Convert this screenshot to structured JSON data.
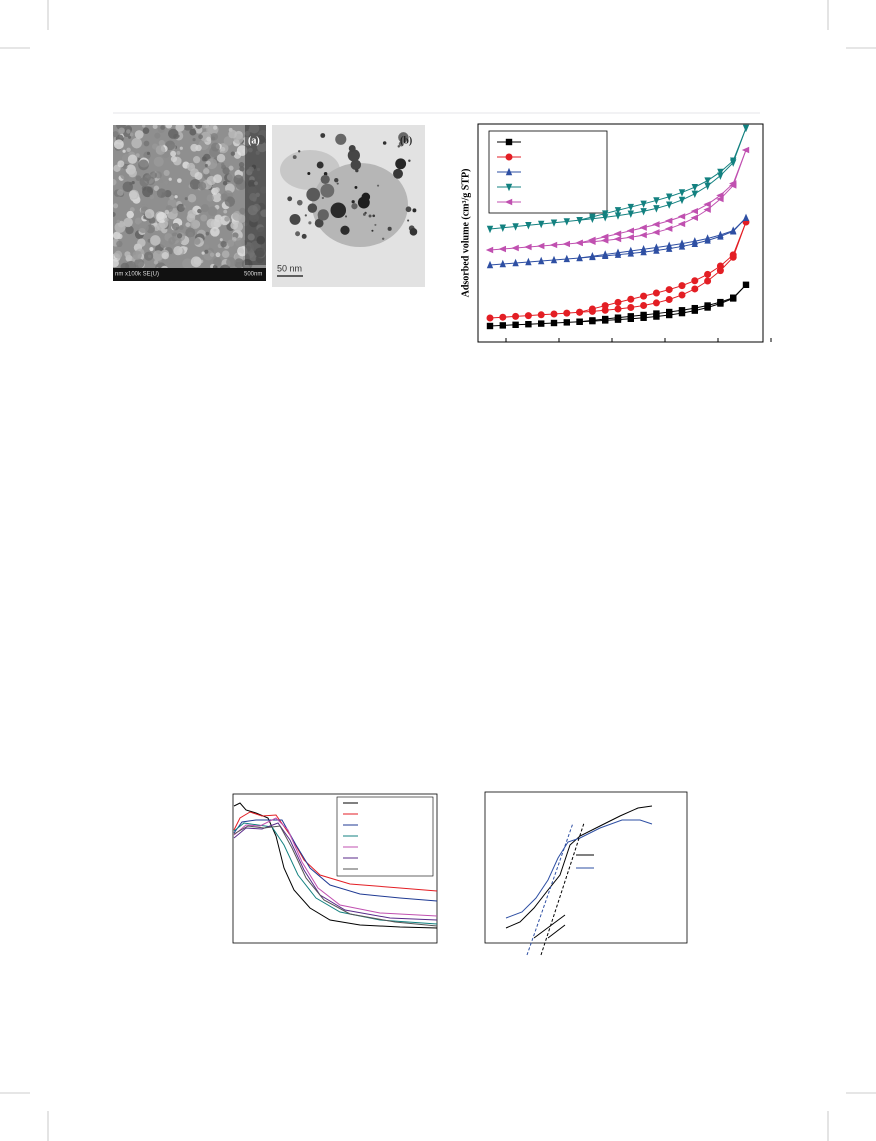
{
  "figure_top": {
    "panel_a": {
      "label": "(a)",
      "info_text": "nm x100k SE(U)",
      "scale_text": "500nm"
    },
    "panel_b": {
      "label": "(b)",
      "scale_text": "50 nm"
    },
    "isotherm": {
      "y_axis_label": "Adsorbed volume (cm³/g STP)"
    }
  }
}
